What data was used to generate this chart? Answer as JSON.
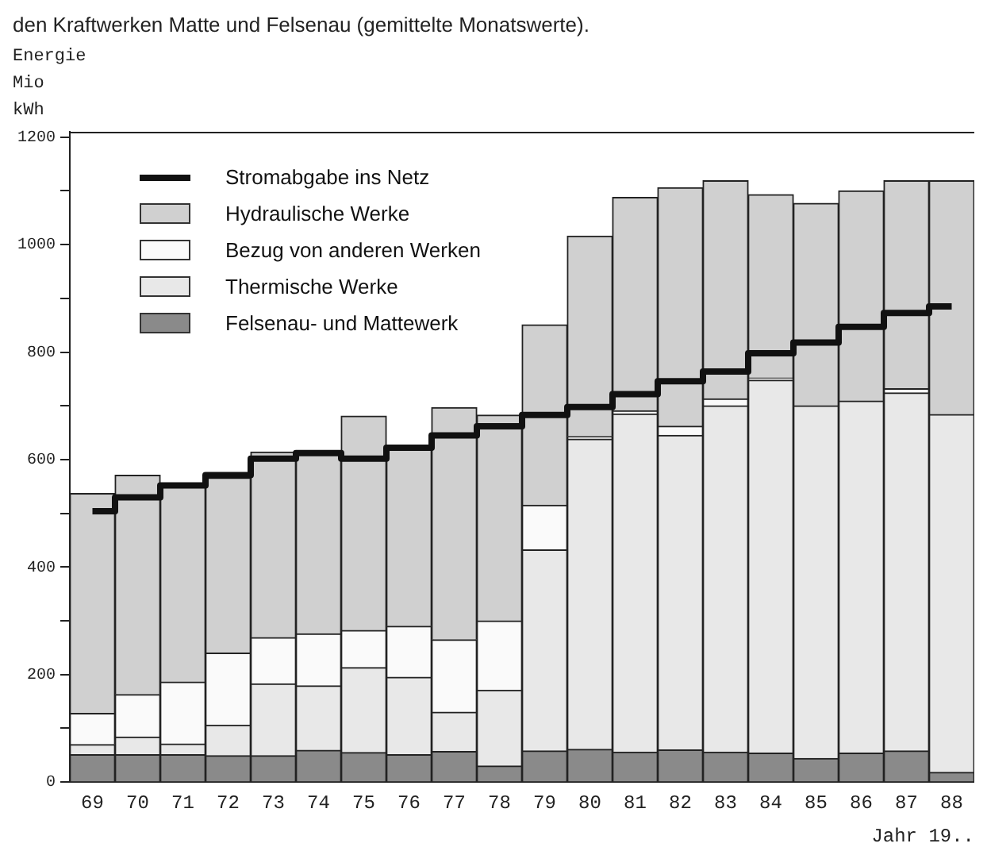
{
  "chart_data": {
    "type": "bar",
    "stacked": true,
    "title": "den Kraftwerken Matte und Felsenau (gemittelte Monatswerte).",
    "ylabel": "Energie Mio kWh",
    "xlabel": "Jahr 19..",
    "categories": [
      "69",
      "70",
      "71",
      "72",
      "73",
      "74",
      "75",
      "76",
      "77",
      "78",
      "79",
      "80",
      "81",
      "82",
      "83",
      "84",
      "85",
      "86",
      "87",
      "88"
    ],
    "series": [
      {
        "name": "Felsenau- und Mattewerk",
        "color": "#8a8a8a",
        "values": [
          51,
          51,
          51,
          49,
          49,
          59,
          55,
          51,
          57,
          30,
          58,
          61,
          56,
          60,
          56,
          54,
          44,
          54,
          58,
          18
        ]
      },
      {
        "name": "Thermische Werke",
        "color": "#e8e8e8",
        "values": [
          19,
          33,
          20,
          57,
          134,
          120,
          158,
          144,
          73,
          141,
          374,
          577,
          629,
          585,
          644,
          694,
          656,
          655,
          666,
          666
        ]
      },
      {
        "name": "Bezug von anderen Werken",
        "color": "#fafafa",
        "values": [
          58,
          79,
          115,
          134,
          86,
          97,
          69,
          95,
          135,
          129,
          83,
          5,
          6,
          17,
          13,
          4,
          0,
          0,
          8,
          0
        ]
      },
      {
        "name": "Hydraulische Werke",
        "color": "#d0d0d0",
        "values": [
          409,
          408,
          366,
          326,
          345,
          340,
          399,
          336,
          432,
          383,
          336,
          373,
          397,
          444,
          406,
          341,
          377,
          391,
          387,
          435
        ]
      },
      {
        "name": "Stromabgabe ins Netz",
        "type": "step",
        "color": "#111111",
        "values": [
          504,
          530,
          552,
          571,
          602,
          612,
          602,
          622,
          645,
          662,
          683,
          698,
          722,
          746,
          764,
          798,
          818,
          847,
          873,
          885
        ]
      }
    ],
    "ylim": [
      0,
      1210
    ],
    "yticks": [
      0,
      {
        "value": 100,
        "label": null
      },
      200,
      {
        "value": 300,
        "label": null
      },
      400,
      {
        "value": 500,
        "label": null
      },
      600,
      {
        "value": 700,
        "label": null
      },
      800,
      {
        "value": 900,
        "label": null
      },
      1000,
      {
        "value": 1100,
        "label": null
      },
      1200
    ],
    "legend": "top left"
  }
}
